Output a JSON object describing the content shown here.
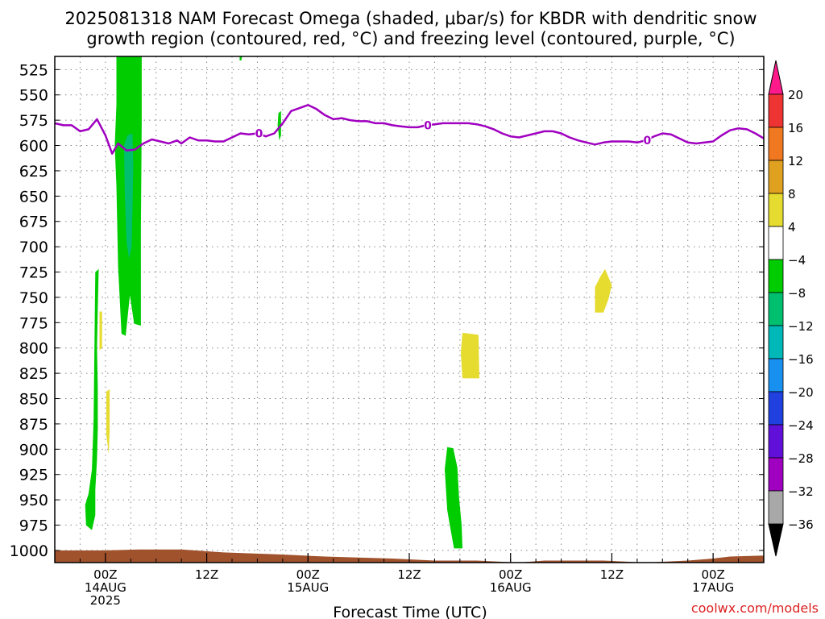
{
  "chart_data": {
    "type": "heatmap",
    "title_line1": "2025081318 NAM Forecast Omega (shaded, μbar/s) for KBDR with dendritic snow",
    "title_line2": "growth region (contoured, red, °C) and freezing level (contoured, purple, °C)",
    "xlabel": "Forecast Time (UTC)",
    "watermark": "coolwx.com/models",
    "x_unit": "hours since 2025-08-13 18Z",
    "xlim": [
      0,
      84
    ],
    "ylim": [
      1012,
      512
    ],
    "y_ticks": [
      525,
      550,
      575,
      600,
      625,
      650,
      675,
      700,
      725,
      750,
      775,
      800,
      825,
      850,
      875,
      900,
      925,
      950,
      975,
      1000
    ],
    "x_ticks": [
      {
        "x": 6,
        "l1": "00Z",
        "l2": "14AUG",
        "l3": "2025"
      },
      {
        "x": 18,
        "l1": "12Z"
      },
      {
        "x": 30,
        "l1": "00Z",
        "l2": "15AUG"
      },
      {
        "x": 42,
        "l1": "12Z"
      },
      {
        "x": 54,
        "l1": "00Z",
        "l2": "16AUG"
      },
      {
        "x": 66,
        "l1": "12Z"
      },
      {
        "x": 78,
        "l1": "00Z",
        "l2": "17AUG"
      }
    ],
    "colorbar": {
      "labels": [
        "20",
        "16",
        "12",
        "8",
        "4",
        "−4",
        "−8",
        "−12",
        "−16",
        "−20",
        "−24",
        "−28",
        "−32",
        "−36"
      ],
      "colors": [
        "#ff1a8c",
        "#ee3333",
        "#f07820",
        "#e0a020",
        "#e6dc30",
        "#ffffff",
        "#00cc00",
        "#00c070",
        "#00b8b8",
        "#1890f0",
        "#2040e0",
        "#6010d8",
        "#a000c0",
        "#a8a8a8",
        "#000000"
      ]
    },
    "freezing_level": {
      "color": "#a000c0",
      "label": "0",
      "points": [
        [
          0,
          578
        ],
        [
          1,
          580
        ],
        [
          2,
          580
        ],
        [
          3,
          586
        ],
        [
          4,
          584
        ],
        [
          5,
          574
        ],
        [
          6,
          590
        ],
        [
          6.8,
          608
        ],
        [
          7.5,
          598
        ],
        [
          8.5,
          605
        ],
        [
          9.5,
          604
        ],
        [
          10.5,
          598
        ],
        [
          11.5,
          594
        ],
        [
          12.5,
          596
        ],
        [
          13.5,
          598
        ],
        [
          14.5,
          595
        ],
        [
          15,
          598
        ],
        [
          16,
          592
        ],
        [
          17,
          595
        ],
        [
          18,
          595
        ],
        [
          19,
          596
        ],
        [
          20,
          596
        ],
        [
          21,
          592
        ],
        [
          22,
          588
        ],
        [
          23,
          589
        ],
        [
          24,
          588
        ],
        [
          25,
          591
        ],
        [
          26,
          588
        ],
        [
          27,
          578
        ],
        [
          28,
          566
        ],
        [
          30,
          560
        ],
        [
          31,
          564
        ],
        [
          32,
          570
        ],
        [
          33,
          574
        ],
        [
          34,
          573
        ],
        [
          35,
          575
        ],
        [
          36,
          576
        ],
        [
          37,
          576
        ],
        [
          38,
          578
        ],
        [
          39,
          578
        ],
        [
          40,
          580
        ],
        [
          41,
          581
        ],
        [
          42,
          582
        ],
        [
          43,
          582
        ],
        [
          44,
          580
        ],
        [
          45,
          579
        ],
        [
          46,
          578
        ],
        [
          47,
          578
        ],
        [
          48,
          578
        ],
        [
          49,
          578
        ],
        [
          50,
          579
        ],
        [
          51,
          581
        ],
        [
          52,
          584
        ],
        [
          53,
          588
        ],
        [
          54,
          591
        ],
        [
          55,
          592
        ],
        [
          56,
          590
        ],
        [
          57,
          588
        ],
        [
          58,
          586
        ],
        [
          59,
          586
        ],
        [
          60,
          588
        ],
        [
          61,
          592
        ],
        [
          62,
          595
        ],
        [
          63,
          597
        ],
        [
          64,
          599
        ],
        [
          65,
          597
        ],
        [
          66,
          596
        ],
        [
          67,
          596
        ],
        [
          68,
          596
        ],
        [
          69,
          597
        ],
        [
          70,
          595
        ],
        [
          71,
          591
        ],
        [
          72,
          588
        ],
        [
          73,
          589
        ],
        [
          74,
          593
        ],
        [
          75,
          597
        ],
        [
          76,
          598
        ],
        [
          77,
          597
        ],
        [
          78,
          596
        ],
        [
          79,
          590
        ],
        [
          80,
          585
        ],
        [
          81,
          583
        ],
        [
          82,
          584
        ],
        [
          83,
          588
        ],
        [
          84,
          593
        ]
      ],
      "labels_at": [
        [
          24.2,
          588
        ],
        [
          44.2,
          580
        ],
        [
          70.2,
          595
        ]
      ]
    },
    "omega_regions": [
      {
        "value_class": "−8 to −4",
        "color": "#00cc00",
        "points": [
          [
            7.3,
            512
          ],
          [
            10.3,
            512
          ],
          [
            10.3,
            578
          ],
          [
            10.2,
            680
          ],
          [
            10.2,
            778
          ],
          [
            9.4,
            776
          ],
          [
            8.9,
            748
          ],
          [
            8.4,
            788
          ],
          [
            7.9,
            786
          ],
          [
            7.5,
            720
          ],
          [
            7.3,
            640
          ],
          [
            7.1,
            600
          ],
          [
            7.3,
            560
          ]
        ]
      },
      {
        "value_class": "−12 to −8",
        "color": "#00c070",
        "points": [
          [
            8.6,
            590
          ],
          [
            9.2,
            588
          ],
          [
            9.3,
            620
          ],
          [
            9.2,
            665
          ],
          [
            9.1,
            700
          ],
          [
            8.8,
            712
          ],
          [
            8.5,
            695
          ],
          [
            8.3,
            650
          ],
          [
            8.2,
            600
          ]
        ]
      },
      {
        "value_class": "−8 to −4",
        "color": "#00cc00",
        "points": [
          [
            4.8,
            725
          ],
          [
            5.2,
            722
          ],
          [
            5.1,
            760
          ],
          [
            5.0,
            800
          ],
          [
            5.1,
            840
          ],
          [
            5.1,
            880
          ],
          [
            5.0,
            910
          ],
          [
            4.8,
            940
          ],
          [
            4.8,
            965
          ],
          [
            4.4,
            980
          ],
          [
            3.7,
            975
          ],
          [
            3.6,
            955
          ],
          [
            4.0,
            944
          ],
          [
            4.4,
            920
          ],
          [
            4.6,
            870
          ],
          [
            4.7,
            800
          ]
        ]
      },
      {
        "value_class": "−8 to −4",
        "color": "#00cc00",
        "points": [
          [
            26.5,
            568
          ],
          [
            26.8,
            566
          ],
          [
            26.8,
            590
          ],
          [
            26.6,
            595
          ],
          [
            26.4,
            580
          ]
        ]
      },
      {
        "value_class": "−8 to −4",
        "color": "#00cc00",
        "points": [
          [
            46.5,
            898
          ],
          [
            47.2,
            899
          ],
          [
            47.7,
            918
          ],
          [
            47.9,
            948
          ],
          [
            48.2,
            975
          ],
          [
            48.3,
            998
          ],
          [
            47.3,
            998
          ],
          [
            46.8,
            975
          ],
          [
            46.5,
            960
          ],
          [
            46.2,
            920
          ]
        ]
      },
      {
        "value_class": "−8 to −4",
        "color": "#00cc00",
        "points": [
          [
            21.9,
            512
          ],
          [
            22.2,
            512
          ],
          [
            22.1,
            516
          ],
          [
            21.9,
            516
          ]
        ]
      },
      {
        "value_class": "4 to 8",
        "color": "#e6dc30",
        "points": [
          [
            5.3,
            764
          ],
          [
            5.6,
            764
          ],
          [
            5.6,
            800
          ],
          [
            5.3,
            802
          ]
        ]
      },
      {
        "value_class": "4 to 8",
        "color": "#e6dc30",
        "points": [
          [
            6.1,
            843
          ],
          [
            6.5,
            841
          ],
          [
            6.5,
            880
          ],
          [
            6.4,
            905
          ],
          [
            6.1,
            885
          ]
        ]
      },
      {
        "value_class": "4 to 8",
        "color": "#e6dc30",
        "points": [
          [
            48.3,
            785
          ],
          [
            50.2,
            787
          ],
          [
            50.3,
            830
          ],
          [
            48.3,
            830
          ],
          [
            48.1,
            805
          ]
        ]
      },
      {
        "value_class": "4 to 8",
        "color": "#e6dc30",
        "points": [
          [
            64.6,
            730
          ],
          [
            65.2,
            722
          ],
          [
            66.0,
            738
          ],
          [
            65.6,
            752
          ],
          [
            65.0,
            765
          ],
          [
            64.0,
            765
          ],
          [
            64.0,
            740
          ]
        ]
      }
    ],
    "terrain": {
      "color": "#a0522d",
      "points": [
        [
          0,
          1000
        ],
        [
          6,
          1000
        ],
        [
          10,
          999
        ],
        [
          15,
          999
        ],
        [
          20,
          1002
        ],
        [
          27,
          1004
        ],
        [
          32,
          1006
        ],
        [
          40,
          1008
        ],
        [
          45,
          1010
        ],
        [
          50,
          1010
        ],
        [
          55,
          1012
        ],
        [
          58,
          1010
        ],
        [
          65,
          1010
        ],
        [
          70,
          1012
        ],
        [
          75,
          1010
        ],
        [
          78,
          1008
        ],
        [
          80,
          1006
        ],
        [
          84,
          1005
        ]
      ]
    }
  }
}
